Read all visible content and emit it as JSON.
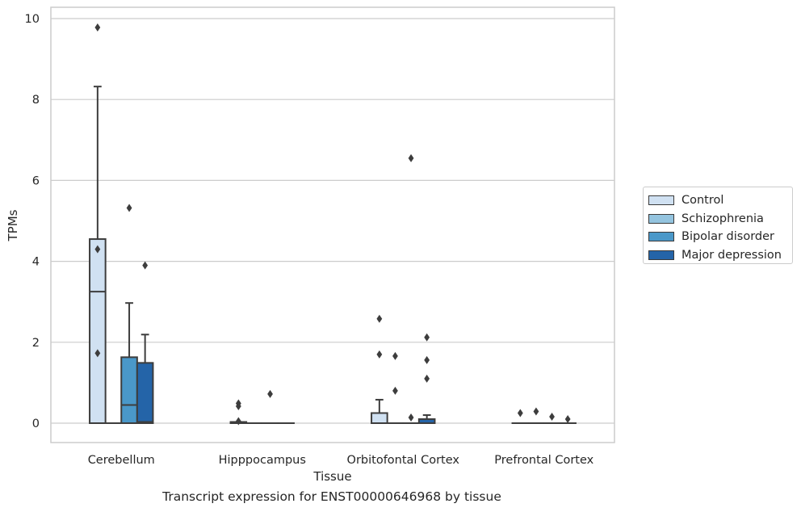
{
  "chart_data": {
    "type": "box",
    "title": "",
    "caption": "Transcript expression for ENST00000646968 by tissue",
    "xlabel": "Tissue",
    "ylabel": "TPMs",
    "ylim": [
      -0.45,
      10.3
    ],
    "yticks": [
      0,
      2,
      4,
      6,
      8,
      10
    ],
    "grid": "horizontal",
    "legend_position": "right",
    "categories": [
      "Cerebellum",
      "Hipppocampus",
      "Orbitofontal Cortex",
      "Prefrontal Cortex"
    ],
    "series": [
      {
        "name": "Control",
        "color": "#d0e1f2",
        "boxes": [
          {
            "q1": 0,
            "median": 3.25,
            "q3": 4.55,
            "whisker_low": 0,
            "whisker_high": 8.32,
            "outliers": [
              9.78,
              4.3,
              1.73
            ]
          },
          {
            "q1": 0,
            "median": 0,
            "q3": 0.03,
            "whisker_low": 0,
            "whisker_high": 0.03,
            "outliers": [
              0.49,
              0.42,
              0.05
            ]
          },
          {
            "q1": 0,
            "median": 0,
            "q3": 0.25,
            "whisker_low": 0,
            "whisker_high": 0.58,
            "outliers": [
              2.58,
              1.7
            ]
          },
          {
            "q1": 0,
            "median": 0,
            "q3": 0,
            "whisker_low": 0,
            "whisker_high": 0,
            "outliers": [
              0.25
            ]
          }
        ]
      },
      {
        "name": "Schizophrenia",
        "color": "#94c4df",
        "boxes": [
          {
            "q1": 0,
            "median": 0,
            "q3": 0,
            "whisker_low": 0,
            "whisker_high": 0,
            "outliers": []
          },
          {
            "q1": 0,
            "median": 0,
            "q3": 0,
            "whisker_low": 0,
            "whisker_high": 0,
            "outliers": []
          },
          {
            "q1": 0,
            "median": 0,
            "q3": 0,
            "whisker_low": 0,
            "whisker_high": 0,
            "outliers": [
              1.66,
              0.8
            ]
          },
          {
            "q1": 0,
            "median": 0,
            "q3": 0,
            "whisker_low": 0,
            "whisker_high": 0,
            "outliers": [
              0.29
            ]
          }
        ]
      },
      {
        "name": "Bipolar disorder",
        "color": "#4a98c9",
        "boxes": [
          {
            "q1": 0,
            "median": 0.45,
            "q3": 1.63,
            "whisker_low": 0,
            "whisker_high": 2.97,
            "outliers": [
              5.32
            ]
          },
          {
            "q1": 0,
            "median": 0,
            "q3": 0,
            "whisker_low": 0,
            "whisker_high": 0,
            "outliers": [
              0.72
            ]
          },
          {
            "q1": 0,
            "median": 0,
            "q3": 0,
            "whisker_low": 0,
            "whisker_high": 0,
            "outliers": [
              6.55,
              0.14
            ]
          },
          {
            "q1": 0,
            "median": 0,
            "q3": 0,
            "whisker_low": 0,
            "whisker_high": 0,
            "outliers": [
              0.16
            ]
          }
        ]
      },
      {
        "name": "Major depression",
        "color": "#2464a8",
        "boxes": [
          {
            "q1": 0,
            "median": 0.03,
            "q3": 1.49,
            "whisker_low": 0,
            "whisker_high": 2.19,
            "outliers": [
              3.9
            ]
          },
          {
            "q1": 0,
            "median": 0,
            "q3": 0,
            "whisker_low": 0,
            "whisker_high": 0,
            "outliers": []
          },
          {
            "q1": 0,
            "median": 0,
            "q3": 0.1,
            "whisker_low": 0,
            "whisker_high": 0.2,
            "outliers": [
              2.12,
              1.56,
              1.1
            ]
          },
          {
            "q1": 0,
            "median": 0,
            "q3": 0,
            "whisker_low": 0,
            "whisker_high": 0,
            "outliers": [
              0.1
            ]
          }
        ]
      }
    ]
  }
}
